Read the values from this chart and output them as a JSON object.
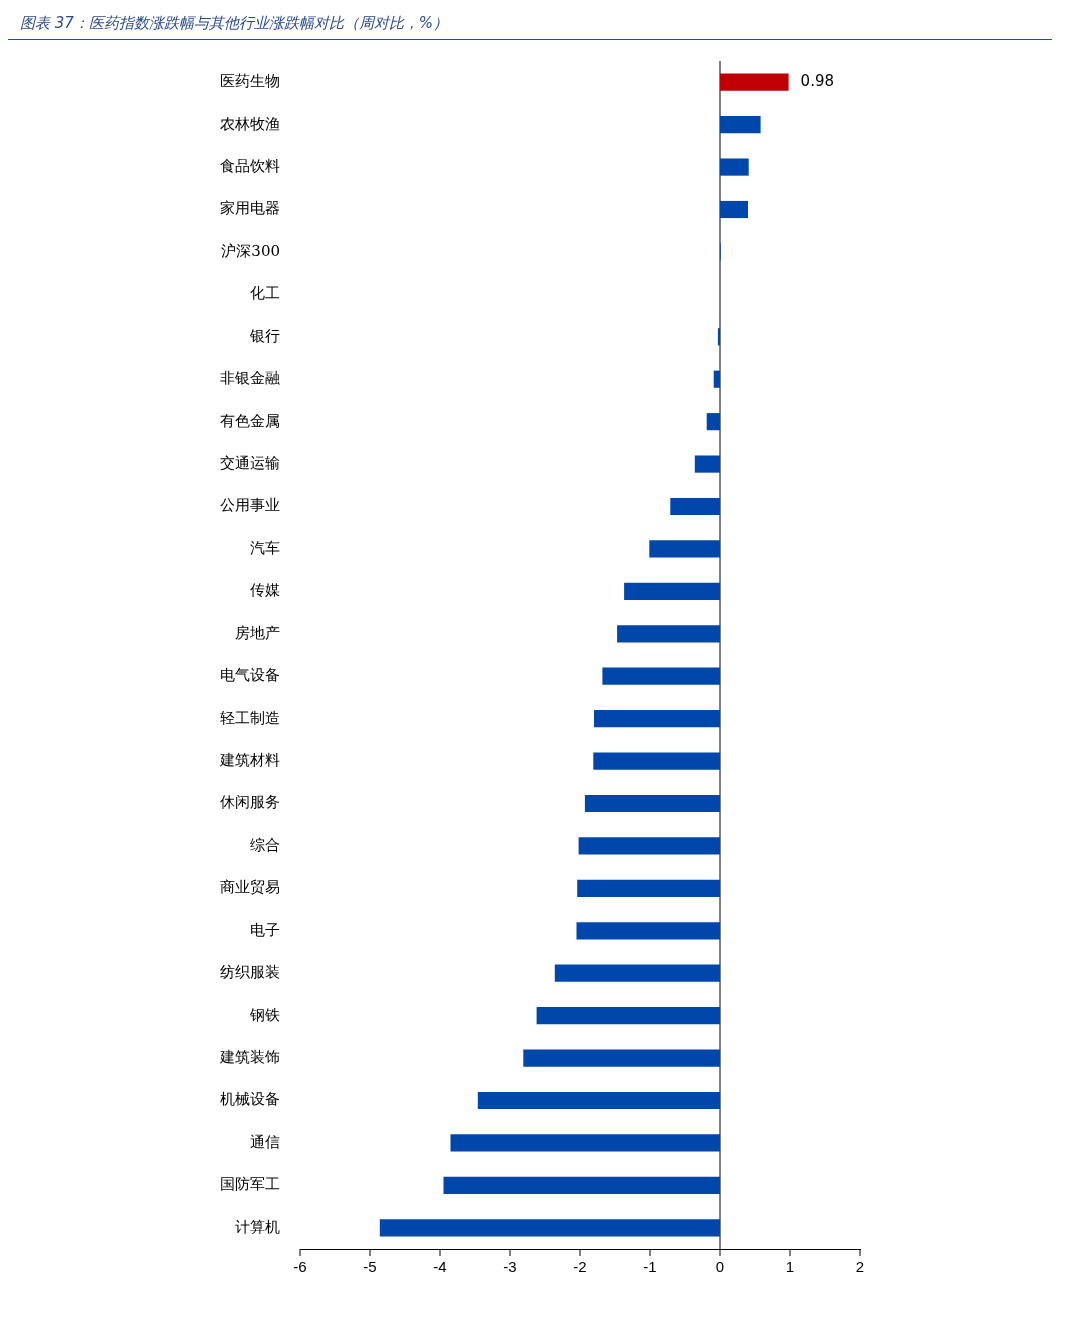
{
  "chart_data": {
    "type": "bar",
    "orientation": "horizontal",
    "title": "图表 37：医药指数涨跌幅与其他行业涨跌幅对比（周对比，%）",
    "categories": [
      "医药生物",
      "农林牧渔",
      "食品饮料",
      "家用电器",
      "沪深300",
      "化工",
      "银行",
      "非银金融",
      "有色金属",
      "交通运输",
      "公用事业",
      "汽车",
      "传媒",
      "房地产",
      "电气设备",
      "轻工制造",
      "建筑材料",
      "休闲服务",
      "综合",
      "商业贸易",
      "电子",
      "纺织服装",
      "钢铁",
      "建筑装饰",
      "机械设备",
      "通信",
      "国防军工",
      "计算机"
    ],
    "values": [
      0.98,
      0.58,
      0.41,
      0.4,
      0.01,
      0,
      -0.03,
      -0.09,
      -0.19,
      -0.36,
      -0.71,
      -1.01,
      -1.37,
      -1.47,
      -1.68,
      -1.8,
      -1.81,
      -1.93,
      -2.02,
      -2.04,
      -2.05,
      -2.36,
      -2.62,
      -2.81,
      -3.46,
      -3.85,
      -3.95,
      -4.86
    ],
    "colors": [
      "#c00000",
      "#0047ab",
      "#0047ab",
      "#0047ab",
      "#0047ab",
      "#0047ab",
      "#0047ab",
      "#0047ab",
      "#0047ab",
      "#0047ab",
      "#0047ab",
      "#0047ab",
      "#0047ab",
      "#0047ab",
      "#0047ab",
      "#0047ab",
      "#0047ab",
      "#0047ab",
      "#0047ab",
      "#0047ab",
      "#0047ab",
      "#0047ab",
      "#0047ab",
      "#0047ab",
      "#0047ab",
      "#0047ab",
      "#0047ab",
      "#0047ab"
    ],
    "value_labels": [
      "0.98",
      null,
      null,
      null,
      null,
      null,
      null,
      null,
      null,
      null,
      null,
      null,
      null,
      null,
      null,
      null,
      null,
      null,
      null,
      null,
      null,
      null,
      null,
      null,
      null,
      null,
      null,
      null
    ],
    "xlim": [
      -6,
      2
    ],
    "xticks": [
      -6,
      -5,
      -4,
      -3,
      -2,
      -1,
      0,
      1,
      2
    ],
    "ref_lines": [
      {
        "axis": "x",
        "value": 0,
        "color": "#000000"
      }
    ],
    "grid": false,
    "legend": false
  }
}
